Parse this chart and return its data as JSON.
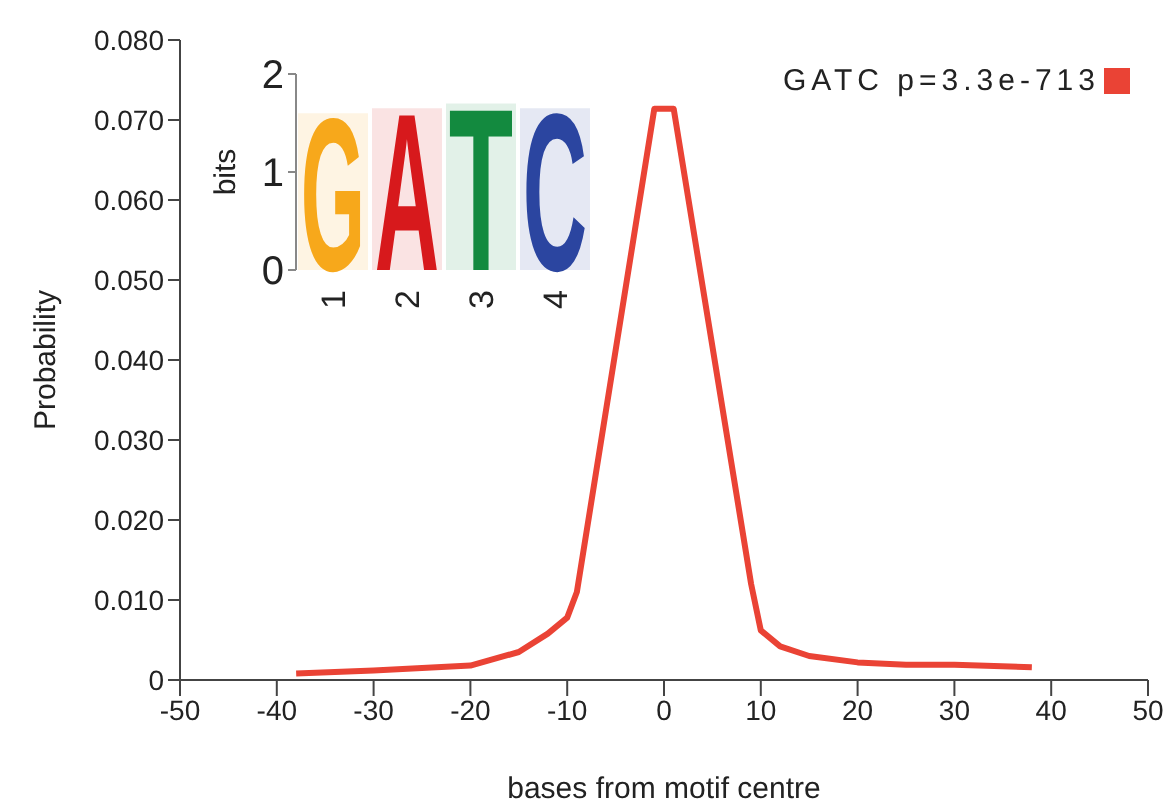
{
  "chart_data": [
    {
      "type": "line",
      "xlabel": "bases from motif centre",
      "ylabel": "Probability",
      "x": [
        -38,
        -30,
        -20,
        -15,
        -12,
        -10,
        -9,
        -1,
        1,
        9,
        10,
        12,
        15,
        20,
        25,
        30,
        38
      ],
      "series": [
        {
          "name": "GATC p=3.3e-713",
          "color": "#ea4335",
          "values": [
            0.0008,
            0.0012,
            0.0018,
            0.0035,
            0.0058,
            0.0078,
            0.011,
            0.0714,
            0.0714,
            0.012,
            0.0062,
            0.0042,
            0.003,
            0.0022,
            0.0019,
            0.0019,
            0.0016
          ]
        }
      ],
      "xlim": [
        -50,
        50
      ],
      "xticks": [
        -50,
        -40,
        -30,
        -20,
        -10,
        0,
        10,
        20,
        30,
        40,
        50
      ],
      "ylim": [
        0,
        0.08
      ],
      "yticks": [
        {
          "value": 0,
          "label": "0"
        },
        {
          "value": 0.01,
          "label": "0.010"
        },
        {
          "value": 0.02,
          "label": "0.020"
        },
        {
          "value": 0.03,
          "label": "0.030"
        },
        {
          "value": 0.04,
          "label": "0.040"
        },
        {
          "value": 0.05,
          "label": "0.050"
        },
        {
          "value": 0.06,
          "label": "0.060"
        },
        {
          "value": 0.07,
          "label": "0.070"
        },
        {
          "value": 0.08,
          "label": "0.080"
        }
      ],
      "legend": "top right",
      "line_style": "solid"
    },
    {
      "type": "bar",
      "ylabel": "bits",
      "categories": [
        "1",
        "2",
        "3",
        "4"
      ],
      "ylim": [
        0,
        2
      ],
      "yticks": [
        0,
        1,
        2
      ],
      "values": [
        1.6,
        1.65,
        1.7,
        1.65
      ],
      "annotations": [
        {
          "text": "G",
          "x": "1",
          "y": 1.6
        },
        {
          "text": "A",
          "x": "2",
          "y": 1.65
        },
        {
          "text": "T",
          "x": "3",
          "y": 1.7
        },
        {
          "text": "C",
          "x": "4",
          "y": 1.65
        }
      ],
      "colors": [
        "#f7a81b",
        "#d7191c",
        "#138a3f",
        "#2b45a0"
      ]
    }
  ]
}
